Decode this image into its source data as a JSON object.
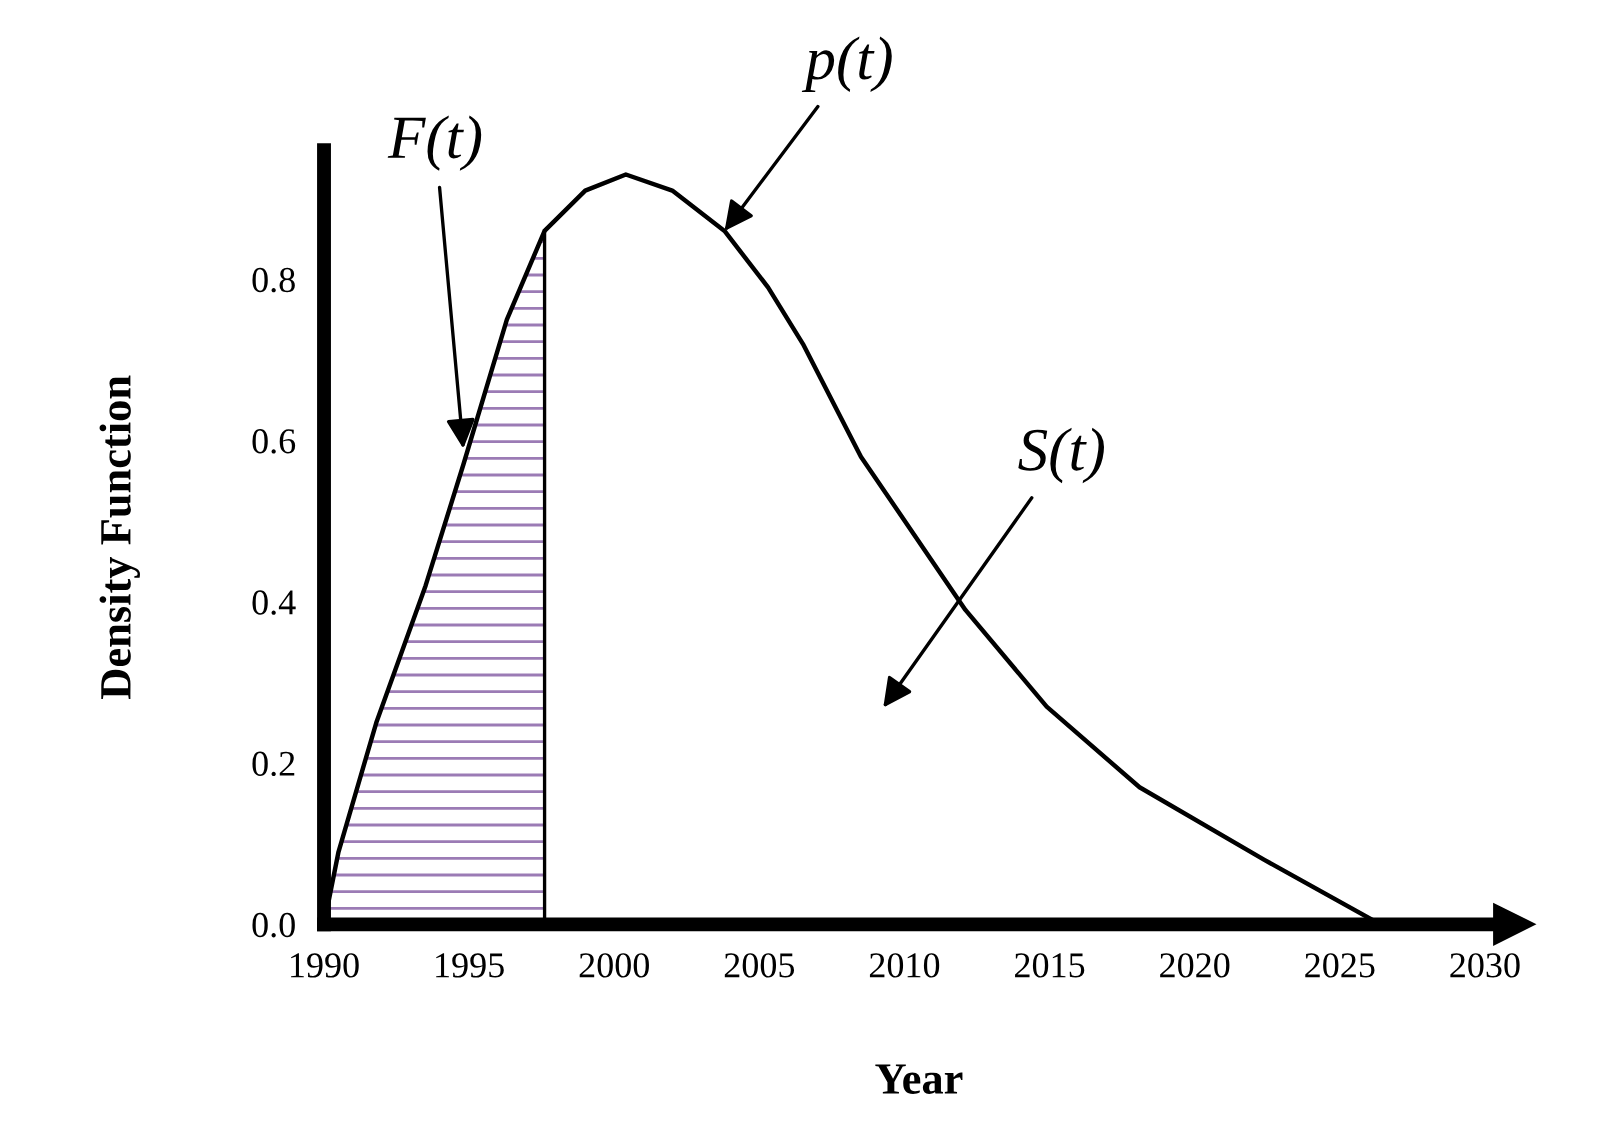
{
  "chart_data": {
    "type": "line",
    "xlabel": "Year",
    "ylabel": "Density Function",
    "series": [
      {
        "color": "#000000",
        "x": [
          1990,
          1990.5,
          1991.8,
          1993.5,
          1994.8,
          1996.3,
          1997.6,
          1999,
          2000.4,
          2002,
          2003.8,
          2005.3,
          2006.5,
          2008.5,
          2012.1,
          2014.9,
          2018.1,
          2022.4,
          2026.4
        ],
        "values": [
          0,
          0.09,
          0.25,
          0.42,
          0.57,
          0.75,
          0.86,
          0.91,
          0.93,
          0.91,
          0.86,
          0.79,
          0.72,
          0.58,
          0.39,
          0.27,
          0.17,
          0.08,
          0
        ]
      },
      {
        "type": "area",
        "color": "#9b7bb5",
        "x": [
          1990,
          1990.5,
          1991.8,
          1993.5,
          1994.8,
          1996.3,
          1997.6
        ],
        "values": [
          0,
          0.09,
          0.25,
          0.42,
          0.57,
          0.75,
          0.86
        ]
      }
    ],
    "ref_lines": [
      {
        "axis": "x",
        "value": 1997.6,
        "color": "#000000"
      }
    ],
    "annotations": [
      {
        "text": "p(t)",
        "x": 2003.8,
        "y": 0.86
      },
      {
        "text": "F(t)",
        "x": 1994.8,
        "y": 0.59
      },
      "S(t)"
    ],
    "xlim": [
      1990,
      2031
    ],
    "ylim": [
      0,
      0.96
    ],
    "xticks": [
      1990,
      1995,
      2000,
      2005,
      2010,
      2015,
      2020,
      2025,
      2030
    ],
    "yticks": [
      {
        "value": 0,
        "label": "0.0"
      },
      {
        "value": 0.2,
        "label": "0.2"
      },
      {
        "value": 0.4,
        "label": "0.4"
      },
      {
        "value": 0.6,
        "label": "0.6"
      },
      {
        "value": 0.8,
        "label": "0.8"
      }
    ],
    "grid": false,
    "legend": false,
    "marker": "none",
    "line_style": "solid"
  }
}
